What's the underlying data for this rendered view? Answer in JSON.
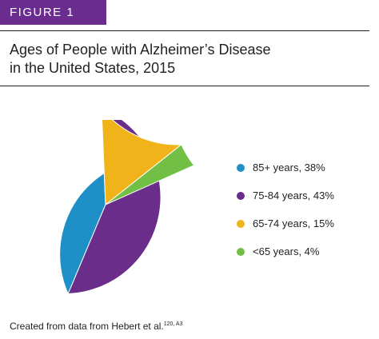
{
  "figure_tag": "FIGURE 1",
  "title_line1": "Ages of People with Alzheimer’s Disease",
  "title_line2": "in the United States, 2015",
  "source_text": "Created from data from Hebert et al.",
  "source_refs": "120, A3",
  "colors": {
    "tag_bg": "#6b2c8f"
  },
  "chart_data": {
    "type": "pie",
    "title": "Ages of People with Alzheimer’s Disease in the United States, 2015",
    "start_angle_deg": 24,
    "slices": [
      {
        "label": "85+ years, 38%",
        "category": "85+ years",
        "value": 38,
        "color": "#1f8fc7"
      },
      {
        "label": "75-84 years, 43%",
        "category": "75-84 years",
        "value": 43,
        "color": "#6a2d8a"
      },
      {
        "label": "65-74 years, 15%",
        "category": "65-74 years",
        "value": 15,
        "color": "#f0b31a"
      },
      {
        "label": "<65 years, 4%",
        "category": "<65 years",
        "value": 4,
        "color": "#71bf44"
      }
    ],
    "legend_position": "right"
  }
}
